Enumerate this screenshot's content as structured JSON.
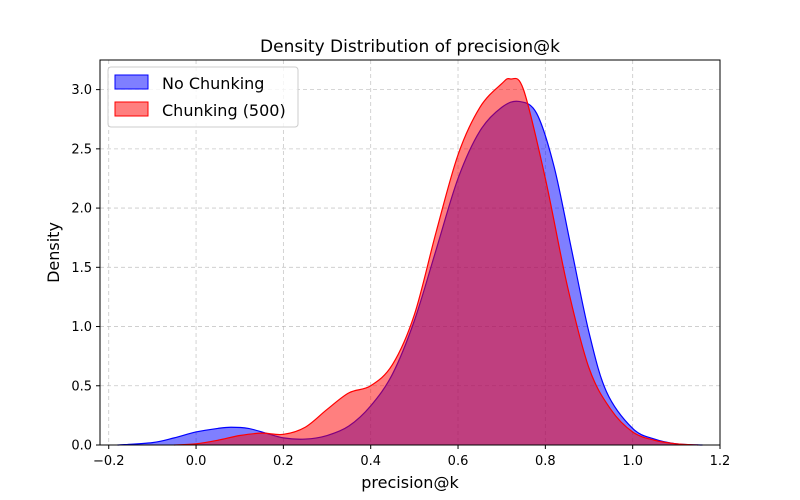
{
  "chart_data": {
    "type": "area",
    "title": "Density Distribution of precision@k",
    "xlabel": "precision@k",
    "ylabel": "Density",
    "xlim": [
      -0.22,
      1.2
    ],
    "ylim": [
      0,
      3.25
    ],
    "xticks": [
      -0.2,
      0.0,
      0.2,
      0.4,
      0.6,
      0.8,
      1.0,
      1.2
    ],
    "xtick_labels": [
      "−0.2",
      "0.0",
      "0.2",
      "0.4",
      "0.6",
      "0.8",
      "1.0",
      "1.2"
    ],
    "yticks": [
      0.0,
      0.5,
      1.0,
      1.5,
      2.0,
      2.5,
      3.0
    ],
    "ytick_labels": [
      "0.0",
      "0.5",
      "1.0",
      "1.5",
      "2.0",
      "2.5",
      "3.0"
    ],
    "grid": true,
    "legend_position": "top-left",
    "series": [
      {
        "name": "No Chunking",
        "color": "#0000ff",
        "fill": "#0000ff",
        "fill_opacity": 0.5,
        "x": [
          -0.18,
          -0.1,
          -0.05,
          0.0,
          0.05,
          0.08,
          0.12,
          0.16,
          0.2,
          0.25,
          0.3,
          0.35,
          0.4,
          0.45,
          0.5,
          0.55,
          0.6,
          0.65,
          0.7,
          0.74,
          0.78,
          0.82,
          0.86,
          0.9,
          0.94,
          1.0,
          1.05,
          1.1,
          1.16
        ],
        "y": [
          0.0,
          0.02,
          0.06,
          0.11,
          0.14,
          0.15,
          0.14,
          0.1,
          0.06,
          0.05,
          0.08,
          0.16,
          0.33,
          0.6,
          1.05,
          1.65,
          2.25,
          2.65,
          2.85,
          2.9,
          2.8,
          2.35,
          1.65,
          0.95,
          0.45,
          0.14,
          0.05,
          0.01,
          0.0
        ]
      },
      {
        "name": "Chunking (500)",
        "color": "#ff0000",
        "fill": "#ff0000",
        "fill_opacity": 0.5,
        "x": [
          -0.05,
          0.0,
          0.05,
          0.1,
          0.15,
          0.2,
          0.25,
          0.3,
          0.35,
          0.4,
          0.45,
          0.5,
          0.55,
          0.6,
          0.65,
          0.7,
          0.72,
          0.75,
          0.8,
          0.85,
          0.9,
          0.95,
          1.0,
          1.05,
          1.1,
          1.15
        ],
        "y": [
          0.0,
          0.01,
          0.04,
          0.08,
          0.1,
          0.09,
          0.15,
          0.3,
          0.44,
          0.5,
          0.68,
          1.1,
          1.8,
          2.45,
          2.85,
          3.05,
          3.09,
          3.0,
          2.25,
          1.35,
          0.65,
          0.3,
          0.11,
          0.04,
          0.01,
          0.0
        ]
      }
    ]
  }
}
